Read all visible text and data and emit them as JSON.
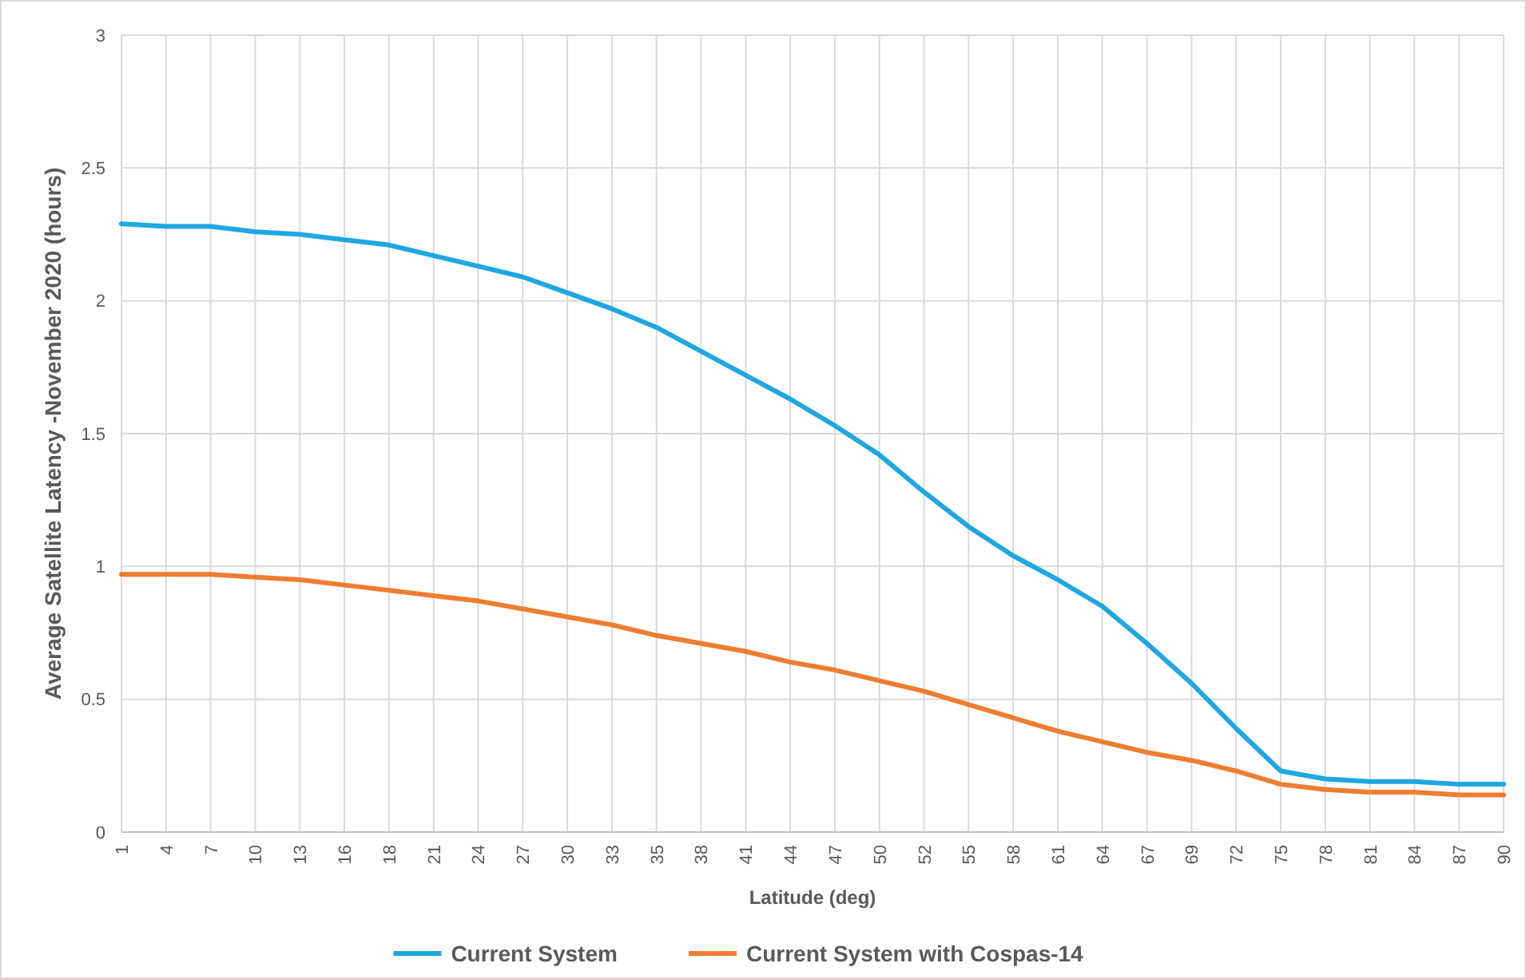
{
  "chart_data": {
    "type": "line",
    "xlabel": "Latitude (deg)",
    "ylabel": "Average Satellite Latency -November 2020 (hours)",
    "categories": [
      "1",
      "4",
      "7",
      "10",
      "13",
      "16",
      "18",
      "21",
      "24",
      "27",
      "30",
      "33",
      "35",
      "38",
      "41",
      "44",
      "47",
      "50",
      "52",
      "55",
      "58",
      "61",
      "64",
      "67",
      "69",
      "72",
      "75",
      "78",
      "81",
      "84",
      "87",
      "90"
    ],
    "series": [
      {
        "name": "Current System",
        "color": "#1ea7e1",
        "values": [
          2.29,
          2.28,
          2.28,
          2.26,
          2.25,
          2.23,
          2.21,
          2.17,
          2.13,
          2.09,
          2.03,
          1.97,
          1.9,
          1.81,
          1.72,
          1.63,
          1.53,
          1.42,
          1.28,
          1.15,
          1.04,
          0.95,
          0.85,
          0.71,
          0.56,
          0.39,
          0.23,
          0.2,
          0.19,
          0.19,
          0.18,
          0.18
        ]
      },
      {
        "name": "Current System with Cospas-14",
        "color": "#ed7d31",
        "values": [
          0.97,
          0.97,
          0.97,
          0.96,
          0.95,
          0.93,
          0.91,
          0.89,
          0.87,
          0.84,
          0.81,
          0.78,
          0.74,
          0.71,
          0.68,
          0.64,
          0.61,
          0.57,
          0.53,
          0.48,
          0.43,
          0.38,
          0.34,
          0.3,
          0.27,
          0.23,
          0.18,
          0.16,
          0.15,
          0.15,
          0.14,
          0.14
        ]
      }
    ],
    "ylim": [
      0,
      3
    ],
    "yticks": [
      0,
      0.5,
      1,
      1.5,
      2,
      2.5,
      3
    ],
    "grid": true,
    "legend": "bottom",
    "marker": "none",
    "line_style": "solid"
  }
}
